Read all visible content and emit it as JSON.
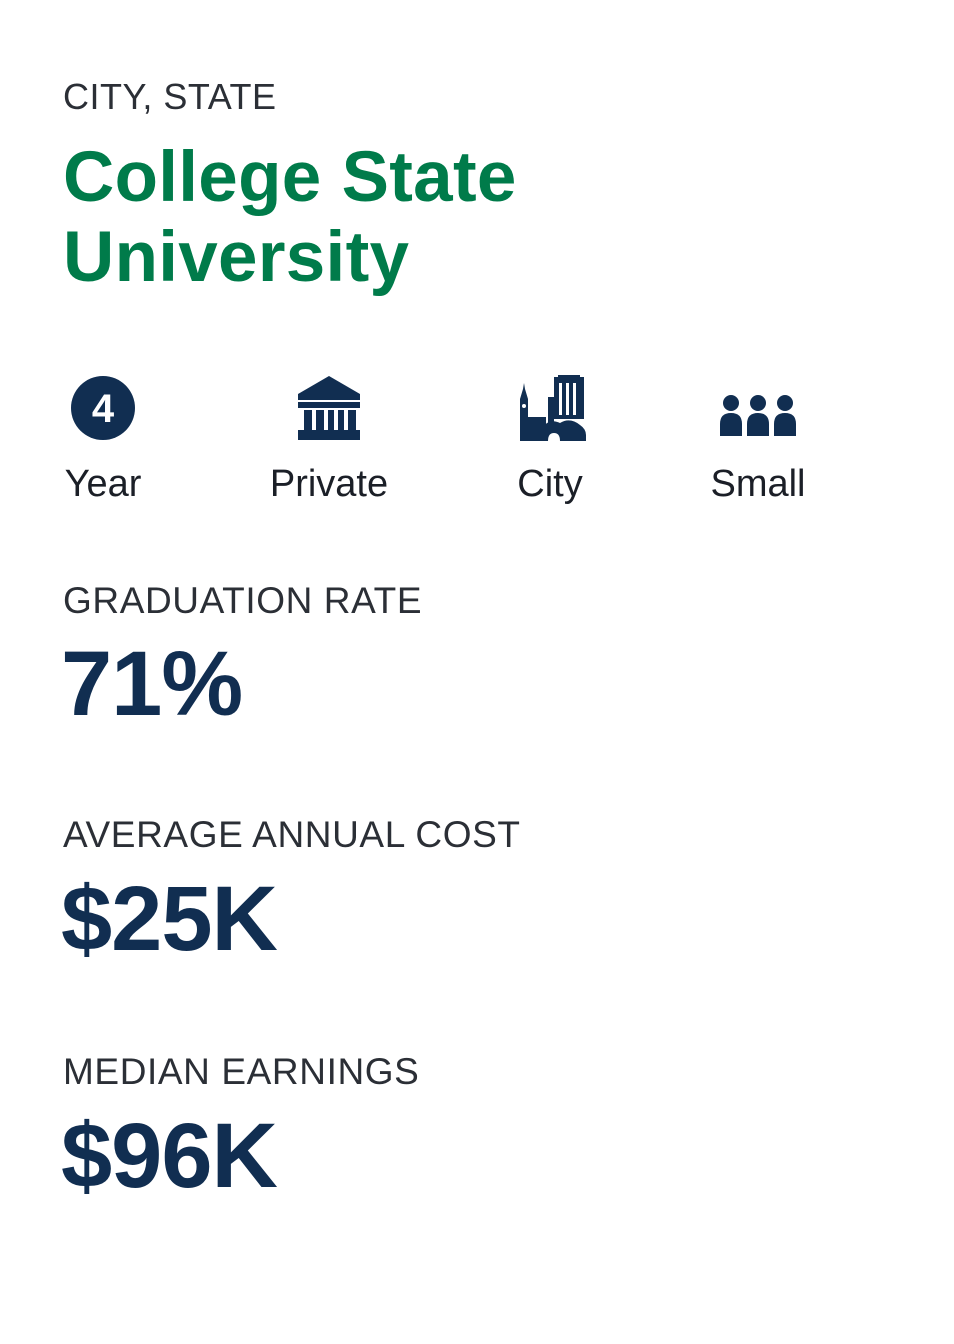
{
  "school": {
    "location": "CITY, STATE",
    "name_line1": "College State",
    "name_line2": "University"
  },
  "features": [
    {
      "label": "Year",
      "icon": "four-year-badge-icon",
      "badge_text": "4"
    },
    {
      "label": "Private",
      "icon": "institution-building-icon"
    },
    {
      "label": "City",
      "icon": "city-skyline-icon"
    },
    {
      "label": "Small",
      "icon": "people-group-icon"
    }
  ],
  "stats": [
    {
      "label": "GRADUATION RATE",
      "value": "71%"
    },
    {
      "label": "AVERAGE ANNUAL COST",
      "value": "$25K"
    },
    {
      "label": "MEDIAN EARNINGS",
      "value": "$96K"
    }
  ],
  "colors": {
    "brand_green": "#007b4a",
    "navy": "#112e51",
    "text_dark": "#2b2f36"
  }
}
